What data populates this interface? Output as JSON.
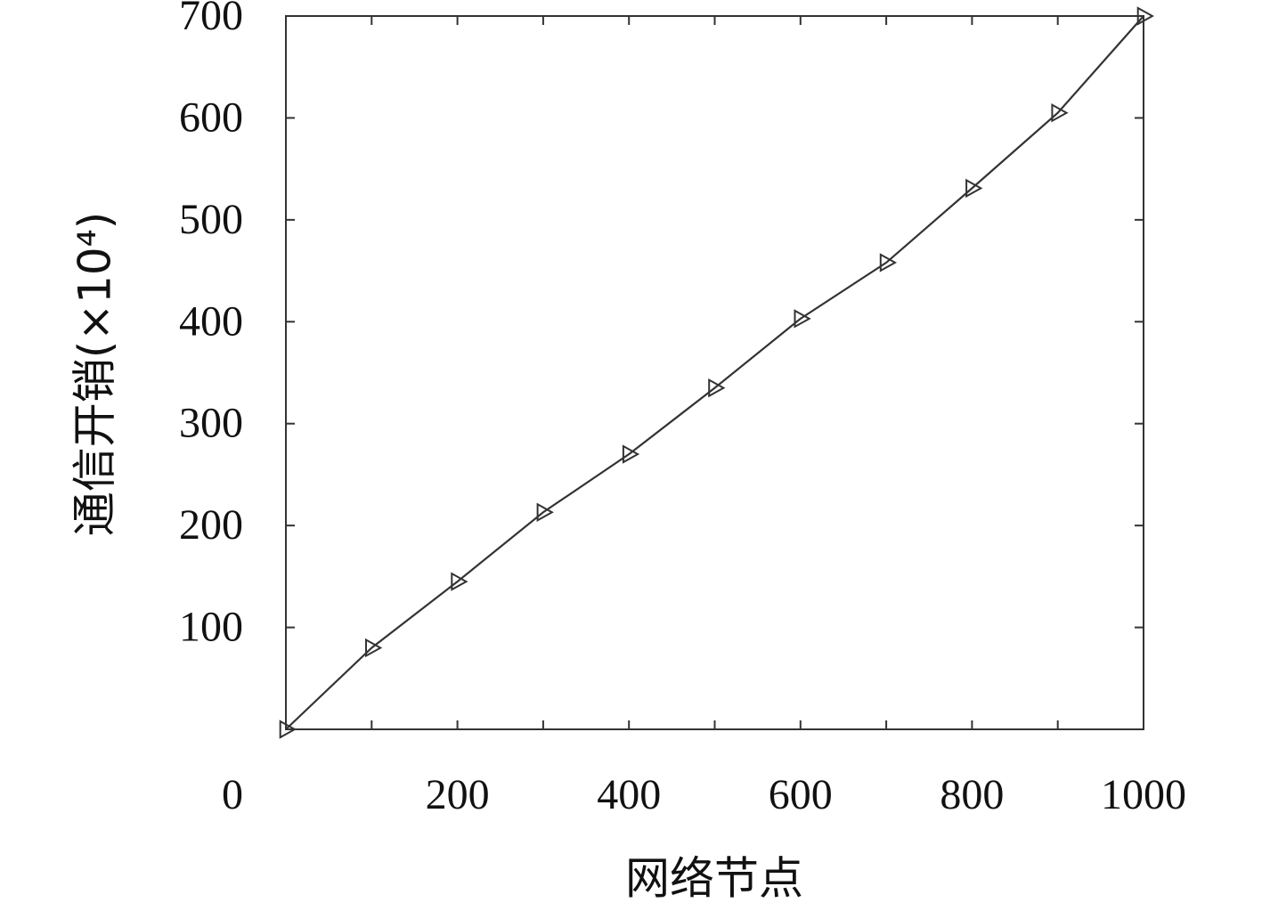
{
  "chart_data": {
    "type": "line",
    "xlabel": "网络节点",
    "ylabel": "通信开销(×10⁴)",
    "x": [
      0,
      100,
      200,
      300,
      400,
      500,
      600,
      700,
      800,
      900,
      1000
    ],
    "series": [
      {
        "color": "#333333",
        "marker": "triangle-right",
        "values": [
          0,
          80,
          145,
          213,
          270,
          335,
          403,
          458,
          531,
          605,
          700
        ]
      }
    ],
    "xlim": [
      0,
      1000
    ],
    "xticks": [
      0,
      200,
      400,
      600,
      800,
      1000
    ],
    "xminor_ticks": [
      100,
      300,
      500,
      700,
      900
    ],
    "ylim": [
      0,
      700
    ],
    "yticks": [
      100,
      200,
      300,
      400,
      500,
      600,
      700
    ],
    "grid": false
  }
}
